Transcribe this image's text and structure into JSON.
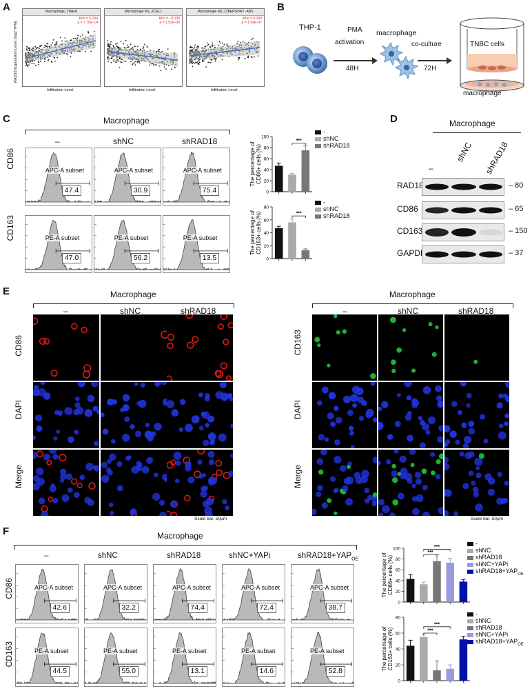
{
  "panels": {
    "A": "A",
    "B": "B",
    "C": "C",
    "D": "D",
    "E": "E",
    "F": "F"
  },
  "panelA": {
    "plots": [
      {
        "title": "Macrophage_TIMER",
        "stats": "Rho = 0.234\np = 7.76e−14"
      },
      {
        "title": "Macrophage M1_XCELL",
        "stats": "Rho = −0.138\np = 1.53e−05"
      },
      {
        "title": "Macrophage M2_CIBERSORT−ABS",
        "stats": "Rho = 0.168\np = 1.54e−07"
      }
    ],
    "ylabel": "RAD18 Expression Level (log2 TPM)",
    "xlabel": "Infiltration Level"
  },
  "panelB": {
    "thp1": "THP-1",
    "pma": "PMA",
    "activation": "activation",
    "h48": "48H",
    "macrophage": "macrophage",
    "coculture": "co-culture",
    "h72": "72H",
    "tnbc": "TNBC cells",
    "macrophage_bottom": "macrophage"
  },
  "panelC": {
    "header": "Macrophage",
    "groups": [
      "–",
      "shNC",
      "shRAD18"
    ],
    "rows": [
      {
        "marker": "CD86",
        "subset": "APC-A subset",
        "values": [
          "47.4",
          "30.9",
          "75.4"
        ]
      },
      {
        "marker": "CD163",
        "subset": "PE-A subset",
        "values": [
          "47.0",
          "56.2",
          "13.5"
        ]
      }
    ],
    "legend": [
      "-",
      "shNC",
      "shRAD18"
    ],
    "sig": "***"
  },
  "panelD": {
    "header": "Macrophage",
    "lanes": [
      "–",
      "shNC",
      "shRAD18"
    ],
    "rows": [
      {
        "name": "RAD18",
        "kda": "80"
      },
      {
        "name": "CD86",
        "kda": "65"
      },
      {
        "name": "CD163",
        "kda": "150"
      },
      {
        "name": "GAPDH",
        "kda": "37"
      }
    ]
  },
  "panelE": {
    "header": "Macrophage",
    "groups": [
      "–",
      "shNC",
      "shRAD18"
    ],
    "left_rows": [
      "CD86",
      "DAPI",
      "Merge"
    ],
    "right_rows": [
      "CD163",
      "DAPI",
      "Merge"
    ],
    "scale": "Scale bar, 50μm"
  },
  "panelF": {
    "header": "Macrophage",
    "groups": [
      "–",
      "shNC",
      "shRAD18",
      "shNC+YAPi",
      "shRAD18+YAP"
    ],
    "oe_sub": "OE",
    "rows": [
      {
        "marker": "CD86",
        "subset": "APC-A subset",
        "values": [
          "42.6",
          "32.2",
          "74.4",
          "72.4",
          "38.7"
        ]
      },
      {
        "marker": "CD163",
        "subset": "PE-A subset",
        "values": [
          "44.5",
          "55.0",
          "13.1",
          "14.6",
          "52.8"
        ]
      }
    ],
    "legend": [
      "-",
      "shNC",
      "shRAD18",
      "shNC+YAPi",
      "shRAD18+YAP"
    ],
    "sig": "***"
  },
  "chart_data": [
    {
      "type": "bar",
      "title": "",
      "ylabel": "The percentage of CD86+ cells (%)",
      "categories": [
        "-",
        "shNC",
        "shRAD18"
      ],
      "values": [
        47,
        31,
        75
      ],
      "errors": [
        5,
        2,
        8
      ],
      "ylim": [
        0,
        100
      ],
      "yticks": [
        0,
        20,
        40,
        60,
        80,
        100
      ],
      "colors": [
        "#111111",
        "#aaaaaa",
        "#777777"
      ]
    },
    {
      "type": "bar",
      "title": "",
      "ylabel": "The percentage of CD163+ cells (%)",
      "categories": [
        "-",
        "shNC",
        "shRAD18"
      ],
      "values": [
        47,
        56,
        13
      ],
      "errors": [
        3,
        5,
        2
      ],
      "ylim": [
        0,
        80
      ],
      "yticks": [
        0,
        20,
        40,
        60,
        80
      ],
      "colors": [
        "#111111",
        "#aaaaaa",
        "#777777"
      ]
    },
    {
      "type": "bar",
      "title": "",
      "ylabel": "The percentage of CD86+ cells (%)",
      "categories": [
        "-",
        "shNC",
        "shRAD18",
        "shNC+YAPi",
        "shRAD18+YAPOE"
      ],
      "values": [
        43,
        33,
        76,
        73,
        38
      ],
      "errors": [
        8,
        4,
        12,
        8,
        4
      ],
      "ylim": [
        0,
        100
      ],
      "yticks": [
        0,
        20,
        40,
        60,
        80,
        100
      ],
      "colors": [
        "#111111",
        "#aaaaaa",
        "#777777",
        "#9999dd",
        "#0011aa"
      ]
    },
    {
      "type": "bar",
      "title": "",
      "ylabel": "The percentage of CD163+ cells (%)",
      "categories": [
        "-",
        "shNC",
        "shRAD18",
        "shNC+YAPi",
        "shRAD18+YAPOE"
      ],
      "values": [
        44,
        55,
        13,
        15,
        52
      ],
      "errors": [
        7,
        3,
        12,
        5,
        4
      ],
      "ylim": [
        0,
        80
      ],
      "yticks": [
        0,
        20,
        40,
        60,
        80
      ],
      "colors": [
        "#111111",
        "#aaaaaa",
        "#777777",
        "#9999dd",
        "#0011aa"
      ]
    }
  ]
}
